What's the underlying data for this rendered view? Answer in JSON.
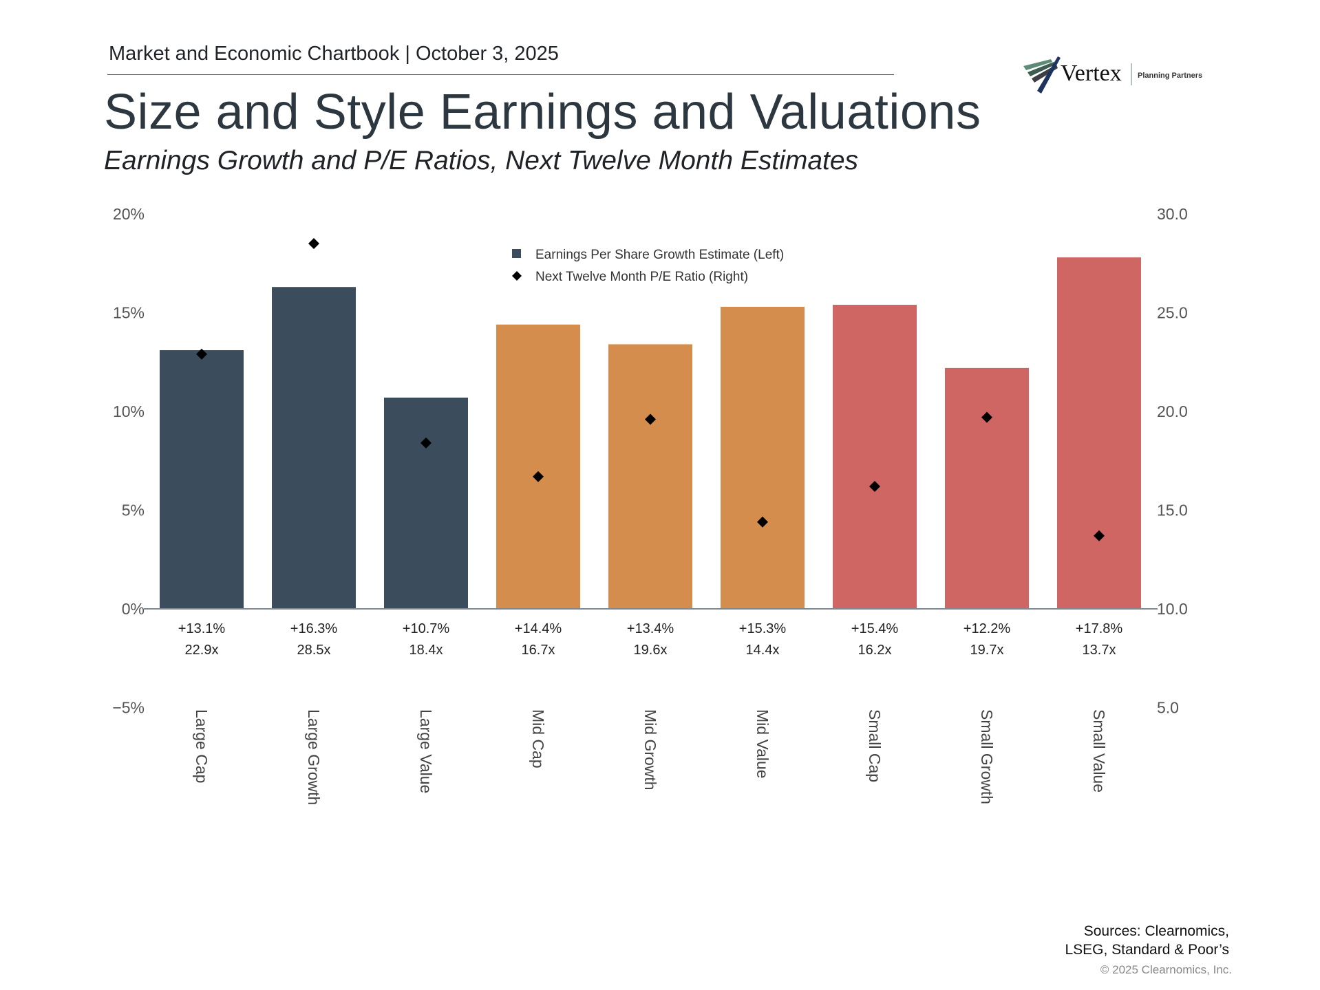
{
  "header": {
    "chartbook": "Market and Economic Chartbook | October 3, 2025",
    "title": "Size and Style Earnings and Valuations",
    "subtitle": "Earnings Growth and P/E Ratios, Next Twelve Month Estimates"
  },
  "logo": {
    "name": "Vertex",
    "tagline": "Planning Partners"
  },
  "footer": {
    "sources_line1": "Sources: Clearnomics,",
    "sources_line2": "LSEG, Standard & Poor’s",
    "copyright": "© 2025 Clearnomics, Inc."
  },
  "chart_data": {
    "type": "bar",
    "categories": [
      "Large Cap",
      "Large Growth",
      "Large Value",
      "Mid Cap",
      "Mid Growth",
      "Mid Value",
      "Small Cap",
      "Small Growth",
      "Small Value"
    ],
    "series": [
      {
        "name": "Earnings Per Share Growth Estimate (Left)",
        "type": "bar",
        "axis": "left",
        "values": [
          13.1,
          16.3,
          10.7,
          14.4,
          13.4,
          15.3,
          15.4,
          12.2,
          17.8
        ],
        "colors": [
          "#3b4d5c",
          "#3b4d5c",
          "#3b4d5c",
          "#d48d4c",
          "#d48d4c",
          "#d48d4c",
          "#cf6664",
          "#cf6664",
          "#cf6664"
        ]
      },
      {
        "name": "Next Twelve Month P/E Ratio (Right)",
        "type": "scatter",
        "marker": "diamond",
        "axis": "right",
        "values": [
          22.9,
          28.5,
          18.4,
          16.7,
          19.6,
          14.4,
          16.2,
          19.7,
          13.7
        ],
        "color": "#000000"
      }
    ],
    "data_labels": {
      "eps": [
        "+13.1%",
        "+16.3%",
        "+10.7%",
        "+14.4%",
        "+13.4%",
        "+15.3%",
        "+15.4%",
        "+12.2%",
        "+17.8%"
      ],
      "pe": [
        "22.9x",
        "28.5x",
        "18.4x",
        "16.7x",
        "19.6x",
        "14.4x",
        "16.2x",
        "19.7x",
        "13.7x"
      ]
    },
    "left_axis": {
      "ylim": [
        -5,
        20
      ],
      "ticks": [
        20,
        15,
        10,
        5,
        0,
        -5
      ],
      "tick_labels": [
        "20%",
        "15%",
        "10%",
        "5%",
        "0%",
        "−5%"
      ]
    },
    "right_axis": {
      "ylim": [
        5,
        30
      ],
      "ticks": [
        30,
        25,
        20,
        15,
        10,
        5
      ],
      "tick_labels": [
        "30.0",
        "25.0",
        "20.0",
        "15.0",
        "10.0",
        "5.0"
      ]
    },
    "legend_position": "top-center",
    "grid": false
  }
}
